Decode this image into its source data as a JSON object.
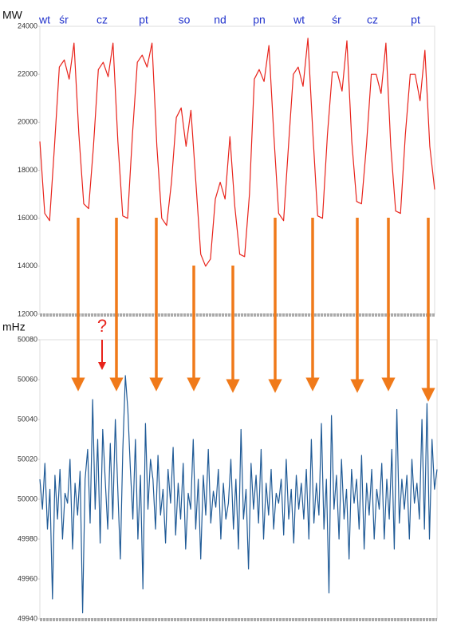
{
  "chart_data": [
    {
      "type": "line",
      "y_label": "MW",
      "color": "#e8231b",
      "x_labels": [
        "wt",
        "śr",
        "cz",
        "pt",
        "so",
        "nd",
        "pn",
        "wt",
        "śr",
        "cz",
        "pt"
      ],
      "ylim": [
        12000,
        24000
      ],
      "yticks": [
        12000,
        14000,
        16000,
        18000,
        20000,
        22000,
        24000
      ],
      "values": [
        19200,
        16200,
        15900,
        19000,
        22300,
        22600,
        21800,
        23300,
        19500,
        16600,
        16400,
        19000,
        22200,
        22500,
        21900,
        23300,
        19200,
        16100,
        16000,
        19500,
        22500,
        22800,
        22300,
        23300,
        19000,
        16000,
        15700,
        17500,
        20200,
        20600,
        19000,
        20500,
        17500,
        14500,
        14000,
        14300,
        16800,
        17500,
        16800,
        19400,
        16500,
        14500,
        14400,
        17000,
        21800,
        22200,
        21700,
        23200,
        19500,
        16200,
        15900,
        19000,
        22000,
        22300,
        21500,
        23500,
        19600,
        16100,
        16000,
        19500,
        22100,
        22100,
        21300,
        23400,
        19200,
        16700,
        16600,
        19000,
        22000,
        22000,
        21200,
        23300,
        19000,
        16300,
        16200,
        19500,
        22000,
        22000,
        20900,
        23000,
        19000,
        17200
      ]
    },
    {
      "type": "line",
      "y_label": "mHz",
      "color": "#1f5a96",
      "annotation": "?",
      "ylim": [
        49940,
        50080
      ],
      "yticks": [
        49940,
        49960,
        49980,
        50000,
        50020,
        50040,
        50060,
        50080
      ],
      "values": [
        50010,
        49995,
        50018,
        49985,
        50005,
        49950,
        50012,
        49990,
        50015,
        49980,
        50003,
        49998,
        50020,
        49975,
        50008,
        49992,
        50014,
        49943,
        50010,
        50025,
        49988,
        50050,
        49995,
        50030,
        49978,
        50035,
        50010,
        49985,
        50028,
        49990,
        50040,
        50005,
        49970,
        50025,
        50062,
        50045,
        50015,
        49990,
        50030,
        49980,
        50012,
        49955,
        50038,
        49995,
        50020,
        50010,
        49985,
        50022,
        49992,
        50005,
        49978,
        50015,
        49998,
        50026,
        49982,
        50008,
        49990,
        50018,
        49975,
        50003,
        49995,
        50030,
        49985,
        50010,
        49970,
        50012,
        49992,
        50025,
        49988,
        50004,
        49996,
        50015,
        49980,
        50008,
        49990,
        49998,
        50020,
        49985,
        50010,
        49975,
        50035,
        49990,
        50005,
        49965,
        50018,
        49995,
        50012,
        49988,
        50025,
        49980,
        50008,
        49992,
        50015,
        49985,
        50003,
        49998,
        50010,
        49982,
        50020,
        49990,
        50005,
        49978,
        50012,
        49995,
        50008,
        49990,
        50015,
        49980,
        50030,
        49988,
        50008,
        49992,
        50038,
        49985,
        50010,
        49953,
        50042,
        49995,
        50012,
        49980,
        50020,
        49990,
        50005,
        49970,
        50015,
        49998,
        50010,
        49985,
        50022,
        49975,
        50008,
        49992,
        50015,
        49980,
        50005,
        49995,
        50018,
        49980,
        50010,
        49990,
        50025,
        49975,
        50045,
        49988,
        50010,
        49995,
        50012,
        49980,
        50020,
        49998,
        50008,
        49990,
        50040,
        49985,
        50048,
        49980,
        50030,
        50005,
        50015
      ]
    }
  ]
}
